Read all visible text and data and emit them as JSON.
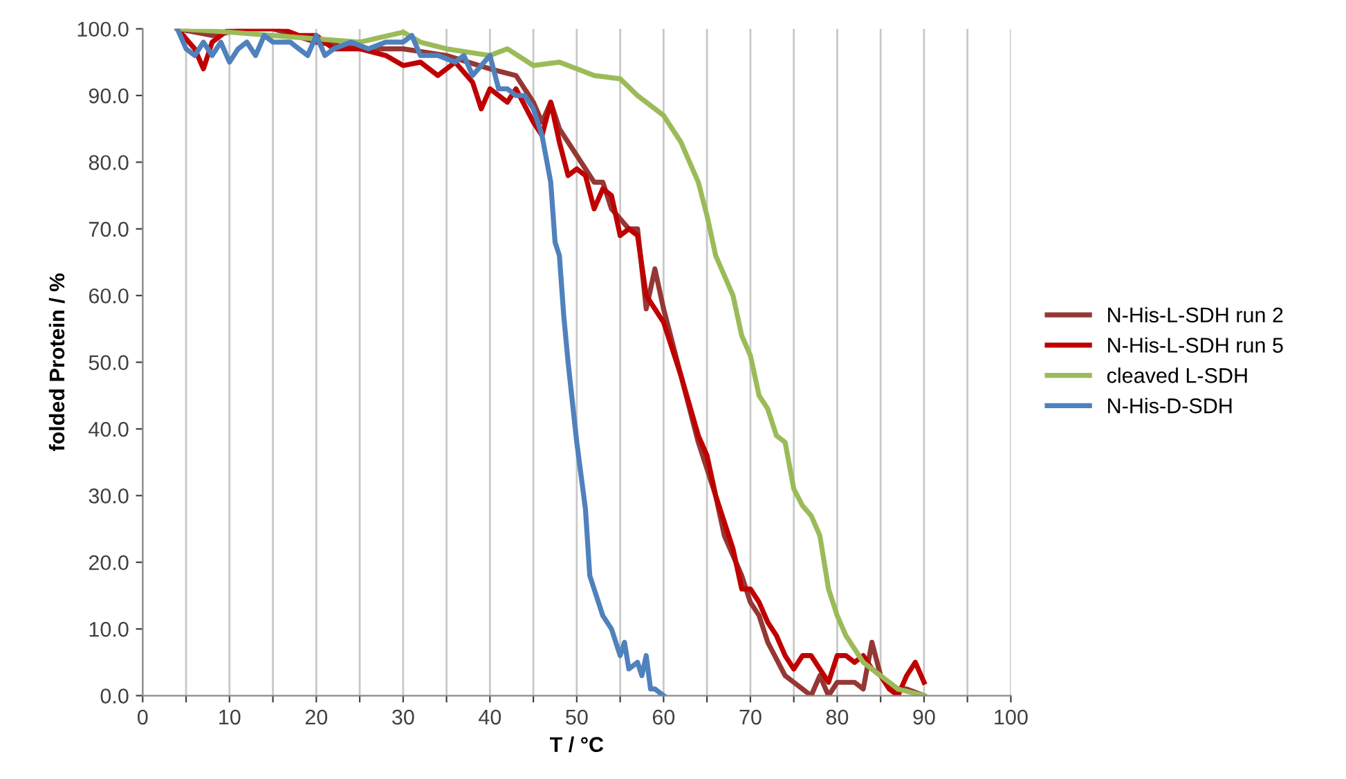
{
  "chart_data": {
    "type": "line",
    "xlabel": "T / °C",
    "ylabel": "folded Protein / %",
    "xlim": [
      0,
      100
    ],
    "ylim": [
      0,
      100
    ],
    "xticks": [
      0,
      {
        "value": 5,
        "label": null
      },
      10,
      {
        "value": 15,
        "label": null
      },
      20,
      {
        "value": 25,
        "label": null
      },
      30,
      {
        "value": 35,
        "label": null
      },
      40,
      {
        "value": 45,
        "label": null
      },
      50,
      {
        "value": 55,
        "label": null
      },
      60,
      {
        "value": 65,
        "label": null
      },
      70,
      {
        "value": 75,
        "label": null
      },
      80,
      {
        "value": 85,
        "label": null
      },
      90,
      {
        "value": 95,
        "label": null
      },
      100
    ],
    "yticks": [
      {
        "value": 0,
        "label": "0.0"
      },
      {
        "value": 10,
        "label": "10.0"
      },
      {
        "value": 20,
        "label": "20.0"
      },
      {
        "value": 30,
        "label": "30.0"
      },
      {
        "value": 40,
        "label": "40.0"
      },
      {
        "value": 50,
        "label": "50.0"
      },
      {
        "value": 60,
        "label": "60.0"
      },
      {
        "value": 70,
        "label": "70.0"
      },
      {
        "value": 80,
        "label": "80.0"
      },
      {
        "value": 90,
        "label": "90.0"
      },
      {
        "value": 100,
        "label": "100.0"
      }
    ],
    "grid": "x",
    "legend": "right",
    "marker": "none",
    "line_style": "solid",
    "series": [
      {
        "name": "N-His-L-SDH run 2",
        "color": "#953735",
        "x": [
          4,
          8,
          12,
          15,
          20,
          25,
          30,
          35,
          40,
          43,
          45,
          46,
          47,
          48,
          50,
          51,
          52,
          53,
          54,
          56,
          57,
          58,
          59,
          60,
          62,
          64,
          66,
          67,
          69,
          70,
          71,
          72,
          74,
          75,
          76,
          77,
          78,
          79,
          80,
          82,
          83,
          84,
          85,
          86,
          88,
          90
        ],
        "values": [
          100,
          99,
          100,
          100,
          98,
          97,
          97,
          96,
          94,
          93,
          89,
          86,
          89,
          85,
          81,
          79,
          77,
          77,
          73,
          70,
          70,
          58,
          64,
          58,
          48,
          38,
          30,
          24,
          18,
          14,
          12,
          8,
          3,
          2,
          1,
          0,
          3,
          0,
          2,
          2,
          1,
          8,
          3,
          1,
          1,
          0
        ]
      },
      {
        "name": "N-His-L-SDH run 5",
        "color": "#c00000",
        "x": [
          4,
          6,
          7,
          8,
          10,
          12,
          14,
          16,
          18,
          20,
          22,
          25,
          28,
          30,
          32,
          34,
          36,
          38,
          39,
          40,
          42,
          43,
          45,
          46,
          47,
          48,
          49,
          50,
          51,
          52,
          53,
          54,
          55,
          56,
          57,
          58,
          60,
          62,
          64,
          65,
          66,
          68,
          69,
          70,
          71,
          72,
          73,
          74,
          75,
          76,
          77,
          78,
          79,
          80,
          81,
          82,
          83,
          84,
          85,
          86,
          87,
          88,
          89,
          90
        ],
        "values": [
          100,
          97,
          94,
          98,
          100,
          100,
          100,
          100,
          99,
          99,
          97,
          97,
          96,
          94.5,
          95,
          93,
          95,
          92,
          88,
          91,
          89,
          91,
          86,
          84,
          89,
          83,
          78,
          79,
          78,
          73,
          76,
          75,
          69,
          70,
          69,
          60,
          56,
          48,
          39,
          36,
          30,
          22,
          16,
          16,
          14,
          11,
          9,
          6,
          4,
          6,
          6,
          4,
          2,
          6,
          6,
          5,
          6,
          4,
          3,
          1,
          0,
          3,
          5,
          2
        ]
      },
      {
        "name": "cleaved L-SDH",
        "color": "#9bbb59",
        "x": [
          4,
          10,
          15,
          20,
          25,
          30,
          32,
          35,
          40,
          42,
          45,
          48,
          50,
          52,
          55,
          57,
          60,
          62,
          64,
          65,
          66,
          68,
          69,
          70,
          71,
          72,
          73,
          74,
          75,
          76,
          77,
          78,
          79,
          80,
          81,
          83,
          85,
          87,
          90
        ],
        "values": [
          100,
          99.5,
          99,
          98.5,
          98,
          99.5,
          98,
          97,
          96,
          97,
          94.5,
          95,
          94,
          93,
          92.5,
          90,
          87,
          83,
          77,
          72,
          66,
          60,
          54,
          51,
          45,
          43,
          39,
          38,
          31,
          28.5,
          27,
          24,
          16,
          12,
          9,
          5,
          3,
          1,
          0
        ]
      },
      {
        "name": "N-His-D-SDH",
        "color": "#4f81bd",
        "x": [
          4,
          5,
          6,
          7,
          8,
          9,
          10,
          11,
          12,
          13,
          14,
          15,
          17,
          18,
          19,
          20,
          21,
          22,
          24,
          26,
          28,
          30,
          31,
          32,
          34,
          36,
          37,
          38,
          40,
          41,
          42,
          43,
          44,
          45,
          46,
          47,
          47.5,
          48,
          48.5,
          49,
          50,
          51,
          51.5,
          52,
          53,
          54,
          55,
          55.5,
          56,
          57,
          57.5,
          58,
          58.5,
          59,
          60
        ],
        "values": [
          100,
          97,
          96,
          98,
          96,
          98,
          95,
          97,
          98,
          96,
          99,
          98,
          98,
          97,
          96,
          99,
          96,
          97,
          98,
          97,
          98,
          98,
          99,
          96,
          96,
          95,
          96,
          93,
          96,
          91,
          91,
          90,
          90,
          88,
          84,
          77,
          68,
          66,
          57,
          50,
          38,
          28,
          18,
          16,
          12,
          10,
          6,
          8,
          4,
          5,
          3,
          6,
          1,
          1,
          0
        ]
      }
    ]
  }
}
